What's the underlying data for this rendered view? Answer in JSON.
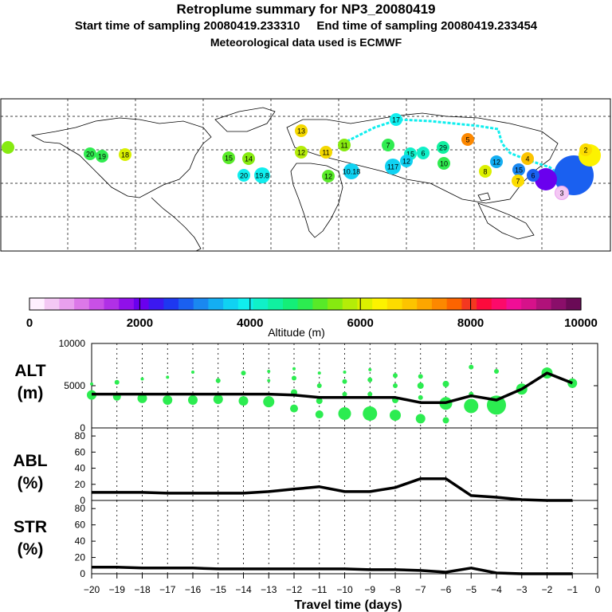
{
  "header": {
    "title": "Retroplume summary for NP3_20080419",
    "sampling_line": "Start time of sampling 20080419.233310     End time of sampling 20080419.233454",
    "met_line": "Meteorological data used is ECMWF"
  },
  "colorbar": {
    "ticks": [
      "0",
      "2000",
      "4000",
      "6000",
      "8000",
      "10000"
    ],
    "label": "Altitude (m)",
    "colors": [
      "#fff0ff",
      "#f4c8f4",
      "#e9a0ee",
      "#dc78e8",
      "#c850e6",
      "#b030e6",
      "#9010ea",
      "#6a00ee",
      "#3c18f0",
      "#1e38f0",
      "#1a60f0",
      "#1a88f0",
      "#14aef2",
      "#10d2f2",
      "#10eeee",
      "#10f0c8",
      "#10f0a0",
      "#14ee78",
      "#2cec50",
      "#58ea28",
      "#86ea10",
      "#b4ec08",
      "#dcf000",
      "#fcf200",
      "#fcdc00",
      "#fcc400",
      "#fca600",
      "#fc8800",
      "#fc6400",
      "#f43820",
      "#fc0a3c",
      "#fc0a6a",
      "#f00e96",
      "#d6128a",
      "#b0127a",
      "#8a0e6a",
      "#6a0a56"
    ]
  },
  "map_labels": [
    {
      "t": "20",
      "c": "#30ec50"
    },
    {
      "t": "19",
      "c": "#30ec50"
    },
    {
      "t": "18",
      "c": "#d8f000"
    },
    {
      "t": "15",
      "c": "#58ea28"
    },
    {
      "t": "14",
      "c": "#86ea10"
    },
    {
      "t": "13",
      "c": "#f4d800"
    },
    {
      "t": "12",
      "c": "#b4ec08"
    },
    {
      "t": "11",
      "c": "#86ea10"
    },
    {
      "t": "17",
      "c": "#10eeee"
    },
    {
      "t": "7",
      "c": "#30ec50"
    },
    {
      "t": "15",
      "c": "#10f0c8"
    },
    {
      "t": "6",
      "c": "#10f0c8"
    },
    {
      "t": "29",
      "c": "#10f0a0"
    },
    {
      "t": "10",
      "c": "#30ec50"
    },
    {
      "t": "117",
      "c": "#10d2f2"
    },
    {
      "t": "12",
      "c": "#10d2f2"
    },
    {
      "t": "5",
      "c": "#fc8800"
    },
    {
      "t": "8",
      "c": "#dcf000"
    },
    {
      "t": "12",
      "c": "#14aef2"
    },
    {
      "t": "4",
      "c": "#fcc400"
    },
    {
      "t": "15",
      "c": "#1a88f0"
    },
    {
      "t": "6",
      "c": "#1a60f0"
    },
    {
      "t": "3",
      "c": "#f4c8f4"
    },
    {
      "t": "2",
      "c": "#fcdc00"
    },
    {
      "t": "20",
      "c": "#10eeee"
    },
    {
      "t": "19.8",
      "c": "#10eeee"
    },
    {
      "t": "10.18",
      "c": "#10d2f2"
    },
    {
      "t": "11",
      "c": "#f4d800"
    },
    {
      "t": "12",
      "c": "#58ea28"
    },
    {
      "t": "7",
      "c": "#fcdc00"
    }
  ],
  "chart_data": [
    {
      "type": "line",
      "panel": "ALT",
      "ylabel": "ALT (m)",
      "ylim": [
        0,
        10000
      ],
      "yticks": [
        "0",
        "5000",
        "10000"
      ],
      "x": [
        -20,
        -19,
        -18,
        -17,
        -16,
        -15,
        -14,
        -13,
        -12,
        -11,
        -10,
        -9,
        -8,
        -7,
        -6,
        -5,
        -4,
        -3,
        -2,
        -1
      ],
      "series": [
        {
          "name": "mean altitude",
          "values": [
            4000,
            4000,
            4000,
            4000,
            4000,
            4000,
            4000,
            4000,
            3900,
            3600,
            3600,
            3600,
            3600,
            3000,
            3000,
            3800,
            3300,
            4600,
            6500,
            5300
          ]
        }
      ],
      "bubbles": [
        {
          "x": -20,
          "y": 3900,
          "r": 6
        },
        {
          "x": -20,
          "y": 5200,
          "r": 2
        },
        {
          "x": -19,
          "y": 3700,
          "r": 5
        },
        {
          "x": -19,
          "y": 5400,
          "r": 3
        },
        {
          "x": -18,
          "y": 3500,
          "r": 6
        },
        {
          "x": -18,
          "y": 5800,
          "r": 2
        },
        {
          "x": -17,
          "y": 3300,
          "r": 6
        },
        {
          "x": -17,
          "y": 6000,
          "r": 2
        },
        {
          "x": -16,
          "y": 3300,
          "r": 6
        },
        {
          "x": -16,
          "y": 6600,
          "r": 2
        },
        {
          "x": -15,
          "y": 3400,
          "r": 6
        },
        {
          "x": -15,
          "y": 5600,
          "r": 3
        },
        {
          "x": -14,
          "y": 3200,
          "r": 6
        },
        {
          "x": -14,
          "y": 6500,
          "r": 3
        },
        {
          "x": -13,
          "y": 3100,
          "r": 7
        },
        {
          "x": -13,
          "y": 5600,
          "r": 2
        },
        {
          "x": -13,
          "y": 6700,
          "r": 2
        },
        {
          "x": -12,
          "y": 2300,
          "r": 5
        },
        {
          "x": -12,
          "y": 4200,
          "r": 4
        },
        {
          "x": -12,
          "y": 5900,
          "r": 3
        },
        {
          "x": -12,
          "y": 7000,
          "r": 2
        },
        {
          "x": -11,
          "y": 1600,
          "r": 5
        },
        {
          "x": -11,
          "y": 3200,
          "r": 4
        },
        {
          "x": -11,
          "y": 5000,
          "r": 3
        },
        {
          "x": -11,
          "y": 6500,
          "r": 2
        },
        {
          "x": -10,
          "y": 1700,
          "r": 8
        },
        {
          "x": -10,
          "y": 4000,
          "r": 3
        },
        {
          "x": -10,
          "y": 5500,
          "r": 3
        },
        {
          "x": -10,
          "y": 6600,
          "r": 2
        },
        {
          "x": -9,
          "y": 1700,
          "r": 9
        },
        {
          "x": -9,
          "y": 4000,
          "r": 3
        },
        {
          "x": -9,
          "y": 5700,
          "r": 3
        },
        {
          "x": -9,
          "y": 6900,
          "r": 2
        },
        {
          "x": -8,
          "y": 1500,
          "r": 7
        },
        {
          "x": -8,
          "y": 3300,
          "r": 4
        },
        {
          "x": -8,
          "y": 5000,
          "r": 3
        },
        {
          "x": -8,
          "y": 6200,
          "r": 3
        },
        {
          "x": -7,
          "y": 1100,
          "r": 6
        },
        {
          "x": -7,
          "y": 3600,
          "r": 3
        },
        {
          "x": -7,
          "y": 5000,
          "r": 4
        },
        {
          "x": -7,
          "y": 6100,
          "r": 3
        },
        {
          "x": -6,
          "y": 900,
          "r": 4
        },
        {
          "x": -6,
          "y": 2900,
          "r": 8
        },
        {
          "x": -6,
          "y": 5200,
          "r": 4
        },
        {
          "x": -5,
          "y": 2600,
          "r": 9
        },
        {
          "x": -5,
          "y": 4000,
          "r": 3
        },
        {
          "x": -5,
          "y": 7200,
          "r": 3
        },
        {
          "x": -4,
          "y": 2700,
          "r": 12
        },
        {
          "x": -4,
          "y": 6700,
          "r": 3
        },
        {
          "x": -3,
          "y": 4600,
          "r": 7
        },
        {
          "x": -2,
          "y": 6500,
          "r": 7
        },
        {
          "x": -1,
          "y": 5300,
          "r": 6
        }
      ]
    },
    {
      "type": "line",
      "panel": "ABL",
      "ylabel": "ABL (%)",
      "ylim": [
        0,
        90
      ],
      "yticks": [
        "0",
        "20",
        "40",
        "60",
        "80"
      ],
      "x": [
        -20,
        -19,
        -18,
        -17,
        -16,
        -15,
        -14,
        -13,
        -12,
        -11,
        -10,
        -9,
        -8,
        -7,
        -6,
        -5,
        -4,
        -3,
        -2,
        -1
      ],
      "series": [
        {
          "name": "ABL fraction",
          "values": [
            10,
            10,
            10,
            9,
            9,
            9,
            9,
            11,
            14,
            17,
            11,
            11,
            16,
            27,
            27,
            6,
            4,
            1,
            0,
            0
          ]
        }
      ]
    },
    {
      "type": "line",
      "panel": "STR",
      "ylabel": "STR (%)",
      "ylim": [
        0,
        90
      ],
      "yticks": [
        "0",
        "20",
        "40",
        "60",
        "80"
      ],
      "x": [
        -20,
        -19,
        -18,
        -17,
        -16,
        -15,
        -14,
        -13,
        -12,
        -11,
        -10,
        -9,
        -8,
        -7,
        -6,
        -5,
        -4,
        -3,
        -2,
        -1
      ],
      "series": [
        {
          "name": "stratospheric fraction",
          "values": [
            8,
            8,
            7,
            7,
            7,
            6,
            6,
            6,
            6,
            6,
            6,
            5,
            5,
            4,
            2,
            7,
            1,
            0,
            0,
            0
          ]
        }
      ]
    }
  ],
  "xaxis": {
    "ticks": [
      "−20",
      "−19",
      "−18",
      "−17",
      "−16",
      "−15",
      "−14",
      "−13",
      "−12",
      "−11",
      "−10",
      "−9",
      "−8",
      "−7",
      "−6",
      "−5",
      "−4",
      "−3",
      "−2",
      "−1",
      "0"
    ],
    "label": "Travel time (days)"
  }
}
